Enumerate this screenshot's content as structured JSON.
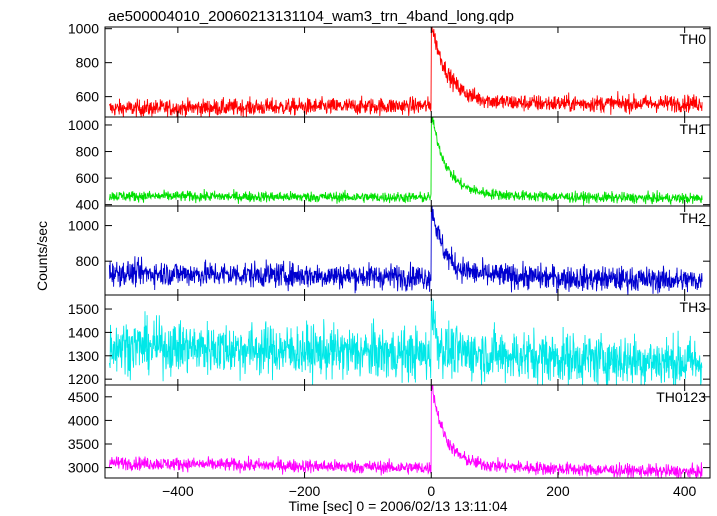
{
  "chart_data": {
    "type": "line",
    "title": "ae500004010_20060213131104_wam3_trn_4band_long.qdp",
    "xlabel": "Time [sec] 0 = 2006/02/13 13:11:04",
    "ylabel": "Counts/sec",
    "xlim": [
      -515,
      440
    ],
    "xticks": [
      -400,
      -200,
      0,
      200,
      400
    ],
    "grid": false,
    "legend": "none",
    "panels": [
      {
        "name": "TH0",
        "color": "#ff0000",
        "ylim": [
          480,
          1010
        ],
        "yticks": [
          600,
          800,
          1000
        ],
        "baseline_start": 530,
        "baseline_end": 560,
        "noise": 25,
        "peak": 1000,
        "decay": 25
      },
      {
        "name": "TH1",
        "color": "#00e000",
        "ylim": [
          390,
          1060
        ],
        "yticks": [
          400,
          600,
          800,
          1000
        ],
        "baseline_start": 465,
        "baseline_end": 445,
        "noise": 20,
        "peak": 1050,
        "decay": 22
      },
      {
        "name": "TH2",
        "color": "#0000d0",
        "ylim": [
          610,
          1110
        ],
        "yticks": [
          800,
          1000
        ],
        "baseline_start": 735,
        "baseline_end": 690,
        "noise": 35,
        "peak": 1100,
        "decay": 18
      },
      {
        "name": "TH3",
        "color": "#00e8e8",
        "ylim": [
          1175,
          1560
        ],
        "yticks": [
          1200,
          1300,
          1400,
          1500
        ],
        "baseline_start": 1345,
        "baseline_end": 1270,
        "noise": 55,
        "peak": 1550,
        "decay": 6
      },
      {
        "name": "TH0123",
        "color": "#ff00ff",
        "ylim": [
          2780,
          4750
        ],
        "yticks": [
          3000,
          3500,
          4000,
          4500
        ],
        "baseline_start": 3100,
        "baseline_end": 2900,
        "noise": 70,
        "peak": 4700,
        "decay": 20
      }
    ]
  }
}
